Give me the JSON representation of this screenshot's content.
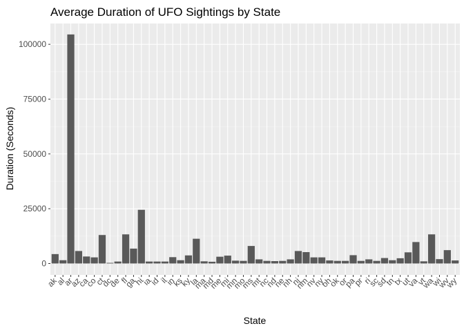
{
  "chart_data": {
    "type": "bar",
    "title": "Average Duration of UFO Sightings by State",
    "xlabel": "State",
    "ylabel": "Duration (Seconds)",
    "ylim": [
      -5200,
      109500
    ],
    "yticks": [
      0,
      25000,
      50000,
      75000,
      100000
    ],
    "ytick_labels": [
      "0",
      "25000",
      "50000",
      "75000",
      "100000"
    ],
    "grid": true,
    "legend": "none",
    "colors": {
      "bar": "#595959",
      "panel": "#ebebeb",
      "grid_major": "#ffffff",
      "grid_minor": "#f5f5f5",
      "text": "#000000",
      "tick_text": "#4d4d4d"
    },
    "categories": [
      "ak",
      "al",
      "ar",
      "az",
      "ca",
      "co",
      "ct",
      "dc",
      "de",
      "fl",
      "ga",
      "hi",
      "ia",
      "id",
      "il",
      "in",
      "ks",
      "ky",
      "la",
      "ma",
      "md",
      "me",
      "mi",
      "mn",
      "mo",
      "ms",
      "mt",
      "nc",
      "nd",
      "ne",
      "nh",
      "nj",
      "nm",
      "nv",
      "ny",
      "oh",
      "ok",
      "or",
      "pa",
      "pr",
      "ri",
      "sc",
      "sd",
      "tn",
      "tx",
      "ut",
      "va",
      "vt",
      "wa",
      "wi",
      "wv",
      "wy"
    ],
    "values": [
      4300,
      1500,
      104500,
      5700,
      3200,
      2800,
      13000,
      300,
      900,
      13300,
      6800,
      24500,
      900,
      900,
      900,
      2900,
      1500,
      3700,
      11300,
      1000,
      800,
      3100,
      3600,
      1300,
      1200,
      8000,
      1900,
      1200,
      1100,
      1200,
      1900,
      5700,
      5200,
      2800,
      2800,
      1400,
      1200,
      1200,
      3800,
      1200,
      1900,
      1200,
      2500,
      1500,
      2400,
      5100,
      9800,
      1000,
      13300,
      2000,
      6100,
      1400
    ]
  }
}
